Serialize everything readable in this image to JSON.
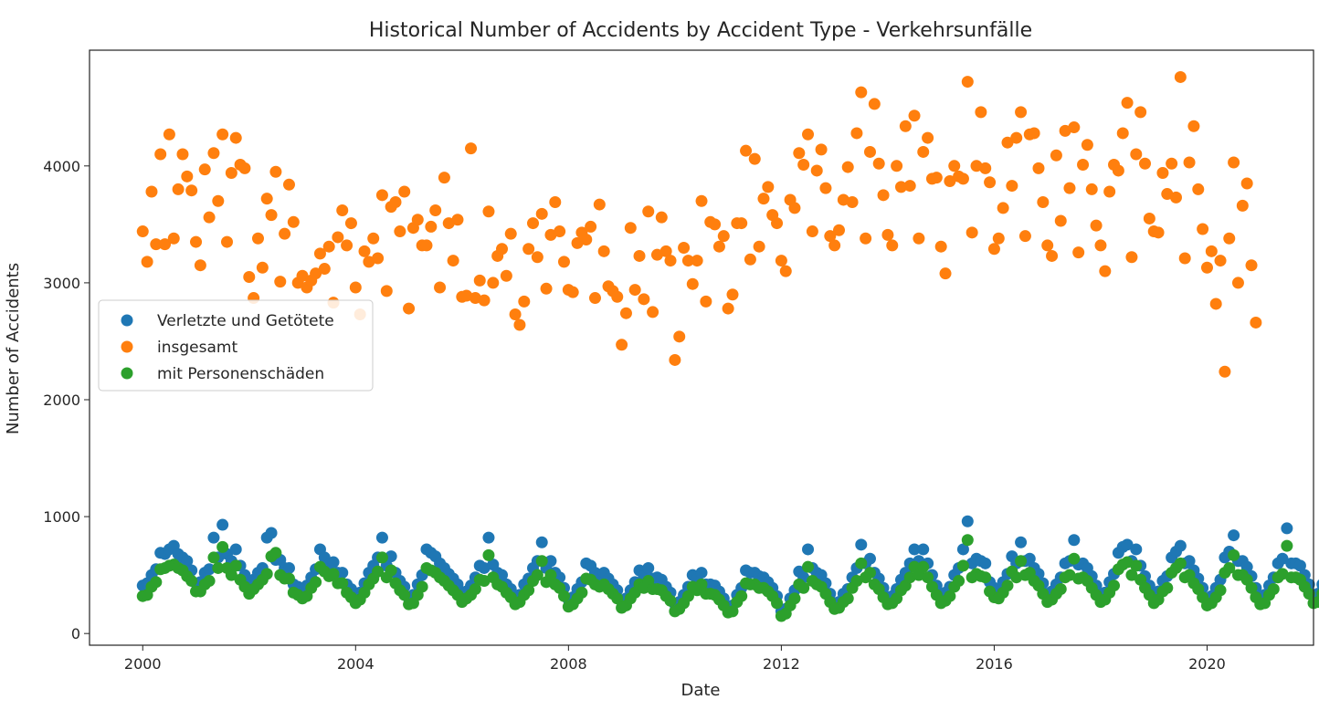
{
  "chart_data": {
    "type": "scatter",
    "title": "Historical Number of Accidents by Accident Type - Verkehrsunfälle",
    "xlabel": "Date",
    "ylabel": "Number of Accidents",
    "x_ticks": [
      "2000",
      "2004",
      "2008",
      "2012",
      "2016",
      "2020"
    ],
    "y_ticks": [
      "0",
      "1000",
      "2000",
      "3000",
      "4000"
    ],
    "xlim": [
      "1999-01-01",
      "2022-01-01"
    ],
    "ylim": [
      -100,
      4990
    ],
    "grid": false,
    "legend_position": "center-left",
    "series": [
      {
        "name": "Verletzte und Getötete",
        "color": "#1f77b4",
        "values": [
          410,
          430,
          500,
          550,
          690,
          680,
          720,
          750,
          680,
          650,
          620,
          540,
          430,
          440,
          520,
          550,
          820,
          650,
          930,
          680,
          620,
          720,
          580,
          500,
          420,
          460,
          520,
          560,
          820,
          860,
          630,
          630,
          560,
          560,
          420,
          400,
          380,
          410,
          480,
          550,
          720,
          650,
          590,
          610,
          520,
          520,
          420,
          380,
          330,
          350,
          430,
          520,
          580,
          650,
          820,
          580,
          660,
          520,
          450,
          400,
          300,
          330,
          420,
          500,
          720,
          690,
          660,
          600,
          560,
          510,
          470,
          420,
          340,
          360,
          410,
          480,
          580,
          560,
          820,
          590,
          520,
          500,
          420,
          380,
          310,
          330,
          420,
          470,
          560,
          620,
          780,
          560,
          620,
          520,
          480,
          390,
          290,
          310,
          380,
          440,
          600,
          580,
          520,
          500,
          520,
          470,
          420,
          370,
          280,
          300,
          370,
          440,
          540,
          490,
          560,
          470,
          480,
          460,
          400,
          350,
          250,
          270,
          330,
          400,
          500,
          460,
          520,
          420,
          420,
          410,
          360,
          300,
          230,
          240,
          330,
          390,
          540,
          520,
          520,
          490,
          480,
          440,
          390,
          320,
          190,
          210,
          300,
          370,
          530,
          480,
          720,
          560,
          520,
          500,
          430,
          340,
          260,
          270,
          340,
          380,
          480,
          560,
          760,
          600,
          640,
          520,
          470,
          390,
          310,
          320,
          380,
          460,
          520,
          600,
          720,
          620,
          720,
          600,
          500,
          410,
          330,
          350,
          400,
          500,
          560,
          720,
          960,
          600,
          640,
          620,
          600,
          440,
          390,
          380,
          440,
          510,
          660,
          600,
          780,
          620,
          640,
          560,
          510,
          430,
          340,
          360,
          420,
          480,
          600,
          620,
          800,
          590,
          600,
          560,
          490,
          410,
          330,
          350,
          440,
          510,
          690,
          740,
          760,
          620,
          720,
          580,
          490,
          410,
          330,
          360,
          450,
          490,
          650,
          700,
          750,
          600,
          620,
          540,
          470,
          390,
          300,
          320,
          390,
          460,
          650,
          700,
          840,
          620,
          620,
          570,
          490,
          390,
          310,
          330,
          410,
          480,
          600,
          640,
          900,
          600,
          600,
          580,
          500,
          420,
          330,
          340,
          420,
          480,
          560,
          600,
          810,
          600,
          620,
          560,
          360,
          340
        ]
      },
      {
        "name": "insgesamt",
        "color": "#ff7f0e",
        "values": [
          3440,
          3180,
          3780,
          3330,
          4100,
          3330,
          4270,
          3380,
          3800,
          4100,
          3910,
          3790,
          3350,
          3150,
          3970,
          3560,
          4110,
          3700,
          4270,
          3350,
          3940,
          4240,
          4010,
          3980,
          3050,
          2870,
          3380,
          3130,
          3720,
          3580,
          3950,
          3010,
          3420,
          3840,
          3520,
          3000,
          3060,
          2960,
          3020,
          3080,
          3250,
          3120,
          3310,
          2830,
          3390,
          3620,
          3320,
          3510,
          2960,
          2730,
          3270,
          3180,
          3380,
          3210,
          3750,
          2930,
          3650,
          3690,
          3440,
          3780,
          2780,
          3470,
          3540,
          3320,
          3320,
          3480,
          3620,
          2960,
          3900,
          3510,
          3190,
          3540,
          2880,
          2890,
          4150,
          2870,
          3020,
          2850,
          3610,
          3000,
          3230,
          3290,
          3060,
          3420,
          2730,
          2640,
          2840,
          3290,
          3510,
          3220,
          3590,
          2950,
          3410,
          3690,
          3440,
          3180,
          2940,
          2920,
          3340,
          3430,
          3370,
          3480,
          2870,
          3670,
          3270,
          2970,
          2930,
          2880,
          2470,
          2740,
          3470,
          2940,
          3230,
          2860,
          3610,
          2750,
          3240,
          3560,
          3270,
          3190,
          2340,
          2540,
          3300,
          3190,
          2990,
          3190,
          3700,
          2840,
          3520,
          3500,
          3310,
          3400,
          2780,
          2900,
          3510,
          3510,
          4130,
          3200,
          4060,
          3310,
          3720,
          3820,
          3580,
          3510,
          3190,
          3100,
          3710,
          3640,
          4110,
          4010,
          4270,
          3440,
          3960,
          4140,
          3810,
          3400,
          3320,
          3450,
          3710,
          3990,
          3690,
          4280,
          4630,
          3380,
          4120,
          4530,
          4020,
          3750,
          3410,
          3320,
          4000,
          3820,
          4340,
          3830,
          4430,
          3380,
          4120,
          4240,
          3890,
          3900,
          3310,
          3080,
          3870,
          4000,
          3910,
          3890,
          4720,
          3430,
          4000,
          4460,
          3980,
          3860,
          3290,
          3380,
          3640,
          4200,
          3830,
          4240,
          4460,
          3400,
          4270,
          4280,
          3980,
          3690,
          3320,
          3230,
          4090,
          3530,
          4300,
          3810,
          4330,
          3260,
          4010,
          4180,
          3800,
          3490,
          3320,
          3100,
          3780,
          4010,
          3960,
          4280,
          4540,
          3220,
          4100,
          4460,
          4020,
          3550,
          3440,
          3430,
          3940,
          3760,
          4020,
          3730,
          4760,
          3210,
          4030,
          4340,
          3800,
          3460,
          3130,
          3270,
          2820,
          3190,
          2240,
          3380,
          4030,
          3000,
          3660,
          3850,
          3150,
          2660
        ]
      },
      {
        "name": "mit Personenschäden",
        "color": "#2ca02c",
        "values": [
          320,
          330,
          400,
          440,
          550,
          560,
          580,
          590,
          560,
          540,
          490,
          450,
          360,
          360,
          420,
          450,
          650,
          560,
          740,
          560,
          500,
          580,
          460,
          400,
          340,
          380,
          420,
          460,
          510,
          660,
          690,
          500,
          470,
          470,
          350,
          330,
          300,
          320,
          390,
          440,
          570,
          530,
          490,
          510,
          430,
          430,
          350,
          310,
          260,
          290,
          350,
          420,
          470,
          530,
          650,
          480,
          540,
          430,
          370,
          330,
          250,
          260,
          330,
          400,
          560,
          540,
          520,
          480,
          450,
          410,
          370,
          330,
          270,
          300,
          330,
          380,
          460,
          450,
          670,
          480,
          420,
          400,
          350,
          310,
          250,
          270,
          330,
          370,
          450,
          500,
          620,
          440,
          500,
          420,
          390,
          320,
          230,
          250,
          300,
          350,
          470,
          460,
          420,
          400,
          420,
          380,
          340,
          300,
          220,
          240,
          300,
          350,
          420,
          390,
          450,
          380,
          380,
          370,
          320,
          280,
          190,
          210,
          260,
          320,
          400,
          370,
          420,
          340,
          340,
          330,
          290,
          240,
          180,
          190,
          270,
          320,
          430,
          420,
          420,
          390,
          390,
          360,
          320,
          260,
          150,
          170,
          240,
          300,
          420,
          390,
          570,
          450,
          420,
          400,
          340,
          270,
          210,
          220,
          270,
          300,
          390,
          450,
          600,
          480,
          520,
          420,
          380,
          310,
          250,
          260,
          300,
          370,
          410,
          480,
          570,
          500,
          570,
          480,
          400,
          330,
          260,
          280,
          320,
          400,
          450,
          580,
          800,
          480,
          510,
          490,
          480,
          360,
          310,
          300,
          350,
          410,
          530,
          480,
          620,
          500,
          520,
          450,
          410,
          340,
          270,
          290,
          340,
          380,
          480,
          500,
          640,
          470,
          480,
          450,
          390,
          330,
          270,
          290,
          350,
          410,
          550,
          590,
          610,
          500,
          580,
          460,
          390,
          330,
          260,
          290,
          360,
          390,
          520,
          560,
          600,
          480,
          500,
          430,
          380,
          310,
          240,
          260,
          310,
          370,
          520,
          560,
          670,
          500,
          500,
          460,
          390,
          310,
          250,
          260,
          330,
          380,
          480,
          510,
          750,
          480,
          480,
          460,
          400,
          340,
          260,
          270,
          340,
          380,
          450,
          480,
          720,
          480,
          500,
          450,
          290,
          270
        ]
      }
    ]
  }
}
